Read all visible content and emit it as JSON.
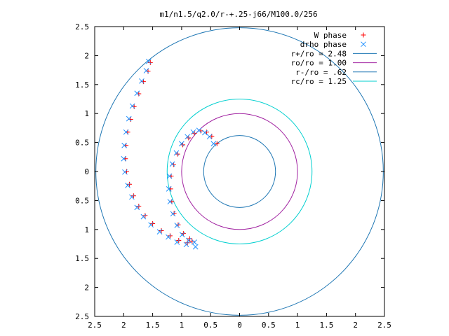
{
  "chart_data": {
    "type": "scatter",
    "title": "m1/n1.5/q2.0/r-+.25-j66/M100.0/256",
    "xlabel": "",
    "ylabel": "",
    "xlim": [
      -2.5,
      2.5
    ],
    "ylim": [
      -2.5,
      2.5
    ],
    "x_ticks": [
      -2.5,
      -2,
      -1.5,
      -1,
      -0.5,
      0,
      0.5,
      1,
      1.5,
      2,
      2.5
    ],
    "y_ticks": [
      -2.5,
      -2,
      -1.5,
      -1,
      -0.5,
      0,
      0.5,
      1,
      1.5,
      2,
      2.5
    ],
    "x_tick_labels": [
      "2.5",
      "2",
      "1.5",
      "1",
      "0.5",
      "0",
      "0.5",
      "1",
      "1.5",
      "2",
      "2.5"
    ],
    "y_tick_labels": [
      "2.5",
      "2",
      "1.5",
      "1",
      "0.5",
      "0",
      "0.5",
      "1",
      "1.5",
      "2",
      "2.5"
    ],
    "grid": false,
    "legend_position": "top-right",
    "series": [
      {
        "name": "W phase",
        "marker": "plus",
        "color": "#ff0000",
        "points": [
          [
            -0.39,
            0.48
          ],
          [
            -0.48,
            0.61
          ],
          [
            -0.57,
            0.68
          ],
          [
            -0.67,
            0.7
          ],
          [
            -0.78,
            0.66
          ],
          [
            -0.88,
            0.58
          ],
          [
            -0.98,
            0.46
          ],
          [
            -1.07,
            0.3
          ],
          [
            -1.14,
            0.12
          ],
          [
            -1.18,
            -0.08
          ],
          [
            -1.19,
            -0.3
          ],
          [
            -1.17,
            -0.52
          ],
          [
            -1.13,
            -0.72
          ],
          [
            -1.06,
            -0.92
          ],
          [
            -0.97,
            -1.07
          ],
          [
            -0.86,
            -1.16
          ],
          [
            -0.82,
            -1.2
          ],
          [
            -0.9,
            -1.23
          ],
          [
            -1.05,
            -1.19
          ],
          [
            -1.2,
            -1.11
          ],
          [
            -1.35,
            -1.02
          ],
          [
            -1.5,
            -0.9
          ],
          [
            -1.63,
            -0.76
          ],
          [
            -1.74,
            -0.6
          ],
          [
            -1.83,
            -0.42
          ],
          [
            -1.9,
            -0.22
          ],
          [
            -1.95,
            0.0
          ],
          [
            -1.97,
            0.22
          ],
          [
            -1.96,
            0.45
          ],
          [
            -1.93,
            0.68
          ],
          [
            -1.88,
            0.9
          ],
          [
            -1.82,
            1.12
          ],
          [
            -1.74,
            1.34
          ],
          [
            -1.66,
            1.55
          ],
          [
            -1.58,
            1.73
          ],
          [
            -1.54,
            1.88
          ]
        ]
      },
      {
        "name": "drho phase",
        "marker": "cross",
        "color": "#1e90ff",
        "points": [
          [
            -0.45,
            0.48
          ],
          [
            -0.52,
            0.6
          ],
          [
            -0.6,
            0.67
          ],
          [
            -0.7,
            0.71
          ],
          [
            -0.8,
            0.68
          ],
          [
            -0.9,
            0.6
          ],
          [
            -1.0,
            0.48
          ],
          [
            -1.09,
            0.32
          ],
          [
            -1.16,
            0.13
          ],
          [
            -1.21,
            -0.08
          ],
          [
            -1.22,
            -0.3
          ],
          [
            -1.2,
            -0.52
          ],
          [
            -1.15,
            -0.73
          ],
          [
            -1.08,
            -0.93
          ],
          [
            -0.99,
            -1.09
          ],
          [
            -0.88,
            -1.19
          ],
          [
            -0.78,
            -1.22
          ],
          [
            -0.76,
            -1.3
          ],
          [
            -0.92,
            -1.26
          ],
          [
            -1.08,
            -1.22
          ],
          [
            -1.23,
            -1.13
          ],
          [
            -1.38,
            -1.04
          ],
          [
            -1.53,
            -0.92
          ],
          [
            -1.66,
            -0.78
          ],
          [
            -1.77,
            -0.62
          ],
          [
            -1.86,
            -0.44
          ],
          [
            -1.93,
            -0.24
          ],
          [
            -1.98,
            -0.01
          ],
          [
            -2.0,
            0.22
          ],
          [
            -1.99,
            0.45
          ],
          [
            -1.96,
            0.68
          ],
          [
            -1.91,
            0.91
          ],
          [
            -1.85,
            1.13
          ],
          [
            -1.77,
            1.35
          ],
          [
            -1.69,
            1.56
          ],
          [
            -1.61,
            1.74
          ],
          [
            -1.57,
            1.9
          ]
        ]
      },
      {
        "name": "r+/ro = 2.48",
        "type": "circle",
        "radius": 2.48,
        "color": "#1f77b4"
      },
      {
        "name": "ro/ro = 1.00",
        "type": "circle",
        "radius": 1.0,
        "color": "#a020a0"
      },
      {
        "name": "r-/ro = .62",
        "type": "circle",
        "radius": 0.62,
        "color": "#1f77b4"
      },
      {
        "name": "rc/ro = 1.25",
        "type": "circle",
        "radius": 1.25,
        "color": "#00cfcf"
      }
    ]
  }
}
